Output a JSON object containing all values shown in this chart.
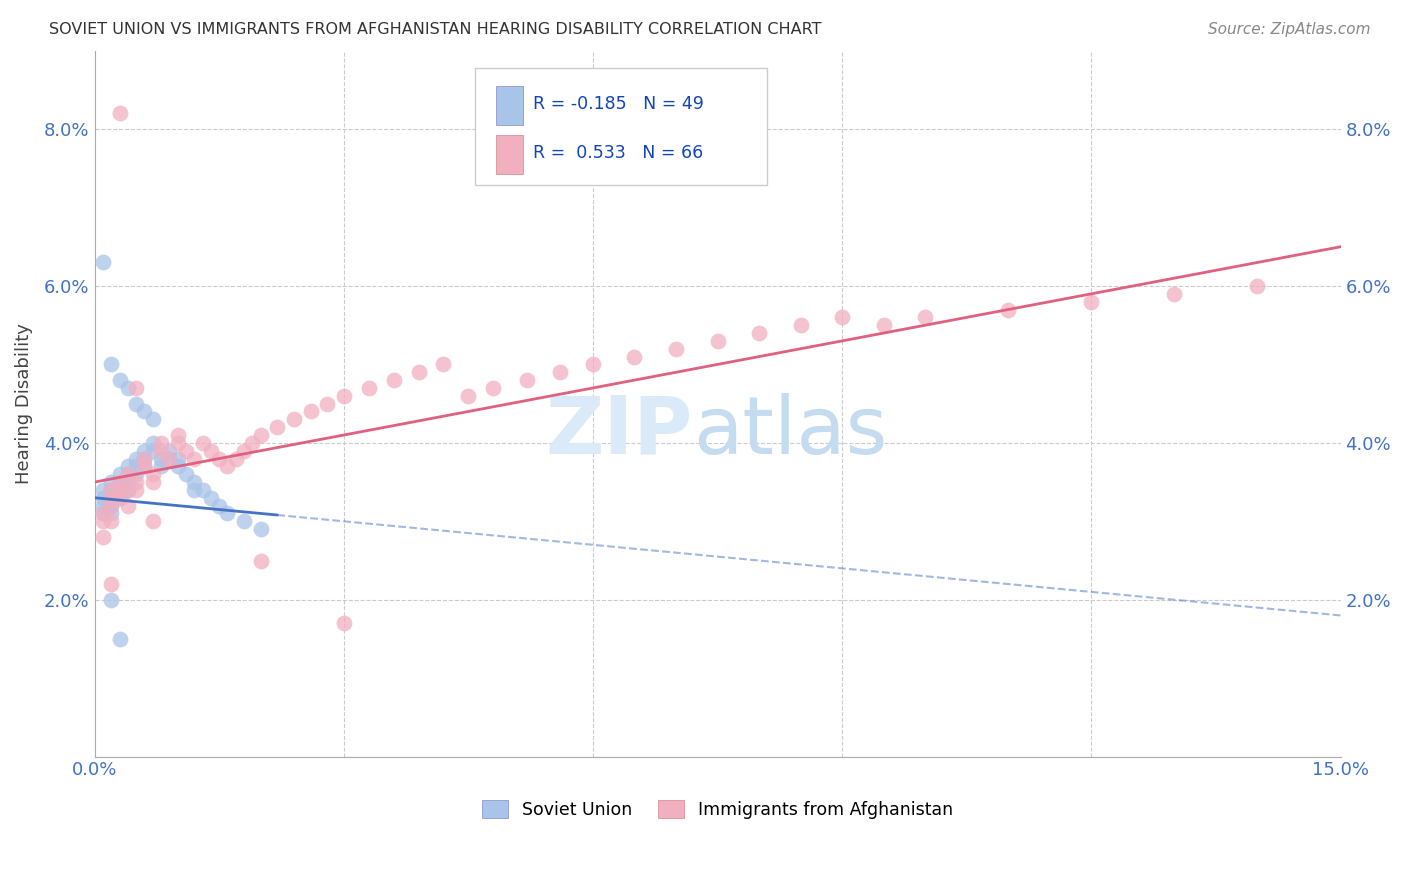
{
  "title": "SOVIET UNION VS IMMIGRANTS FROM AFGHANISTAN HEARING DISABILITY CORRELATION CHART",
  "source": "Source: ZipAtlas.com",
  "ylabel": "Hearing Disability",
  "xlim": [
    0.0,
    0.15
  ],
  "ylim": [
    0.0,
    0.09
  ],
  "xtick_vals": [
    0.0,
    0.03,
    0.06,
    0.09,
    0.12,
    0.15
  ],
  "ytick_vals": [
    0.0,
    0.02,
    0.04,
    0.06,
    0.08
  ],
  "legend_label1": "Soviet Union",
  "legend_label2": "Immigrants from Afghanistan",
  "soviet_color": "#a8c4e8",
  "afghan_color": "#f2afc0",
  "soviet_line_color": "#4472c4",
  "afghan_line_color": "#e06080",
  "legend_r1": "R = -0.185",
  "legend_n1": "N = 49",
  "legend_r2": "R =  0.533",
  "legend_n2": "N = 66",
  "soviet_x": [
    0.001,
    0.001,
    0.001,
    0.001,
    0.002,
    0.002,
    0.002,
    0.002,
    0.002,
    0.003,
    0.003,
    0.003,
    0.003,
    0.004,
    0.004,
    0.004,
    0.004,
    0.005,
    0.005,
    0.005,
    0.006,
    0.006,
    0.006,
    0.007,
    0.007,
    0.008,
    0.008,
    0.009,
    0.009,
    0.01,
    0.01,
    0.011,
    0.012,
    0.012,
    0.013,
    0.014,
    0.015,
    0.016,
    0.018,
    0.02,
    0.001,
    0.002,
    0.003,
    0.004,
    0.005,
    0.006,
    0.007,
    0.003,
    0.002
  ],
  "soviet_y": [
    0.034,
    0.033,
    0.032,
    0.031,
    0.035,
    0.034,
    0.033,
    0.032,
    0.031,
    0.036,
    0.035,
    0.034,
    0.033,
    0.037,
    0.036,
    0.035,
    0.034,
    0.038,
    0.037,
    0.036,
    0.039,
    0.038,
    0.037,
    0.04,
    0.039,
    0.038,
    0.037,
    0.039,
    0.038,
    0.038,
    0.037,
    0.036,
    0.035,
    0.034,
    0.034,
    0.033,
    0.032,
    0.031,
    0.03,
    0.029,
    0.063,
    0.05,
    0.048,
    0.047,
    0.045,
    0.044,
    0.043,
    0.015,
    0.02
  ],
  "afghan_x": [
    0.001,
    0.001,
    0.001,
    0.002,
    0.002,
    0.002,
    0.002,
    0.003,
    0.003,
    0.003,
    0.004,
    0.004,
    0.004,
    0.005,
    0.005,
    0.006,
    0.006,
    0.007,
    0.007,
    0.008,
    0.008,
    0.009,
    0.01,
    0.01,
    0.011,
    0.012,
    0.013,
    0.014,
    0.015,
    0.016,
    0.017,
    0.018,
    0.019,
    0.02,
    0.022,
    0.024,
    0.026,
    0.028,
    0.03,
    0.033,
    0.036,
    0.039,
    0.042,
    0.045,
    0.048,
    0.052,
    0.056,
    0.06,
    0.065,
    0.07,
    0.075,
    0.08,
    0.085,
    0.09,
    0.095,
    0.1,
    0.11,
    0.12,
    0.13,
    0.14,
    0.003,
    0.005,
    0.002,
    0.007,
    0.02,
    0.03
  ],
  "afghan_y": [
    0.028,
    0.03,
    0.031,
    0.032,
    0.033,
    0.034,
    0.03,
    0.035,
    0.034,
    0.033,
    0.032,
    0.034,
    0.036,
    0.035,
    0.034,
    0.038,
    0.037,
    0.036,
    0.035,
    0.04,
    0.039,
    0.038,
    0.04,
    0.041,
    0.039,
    0.038,
    0.04,
    0.039,
    0.038,
    0.037,
    0.038,
    0.039,
    0.04,
    0.041,
    0.042,
    0.043,
    0.044,
    0.045,
    0.046,
    0.047,
    0.048,
    0.049,
    0.05,
    0.046,
    0.047,
    0.048,
    0.049,
    0.05,
    0.051,
    0.052,
    0.053,
    0.054,
    0.055,
    0.056,
    0.055,
    0.056,
    0.057,
    0.058,
    0.059,
    0.06,
    0.082,
    0.047,
    0.022,
    0.03,
    0.025,
    0.017
  ]
}
